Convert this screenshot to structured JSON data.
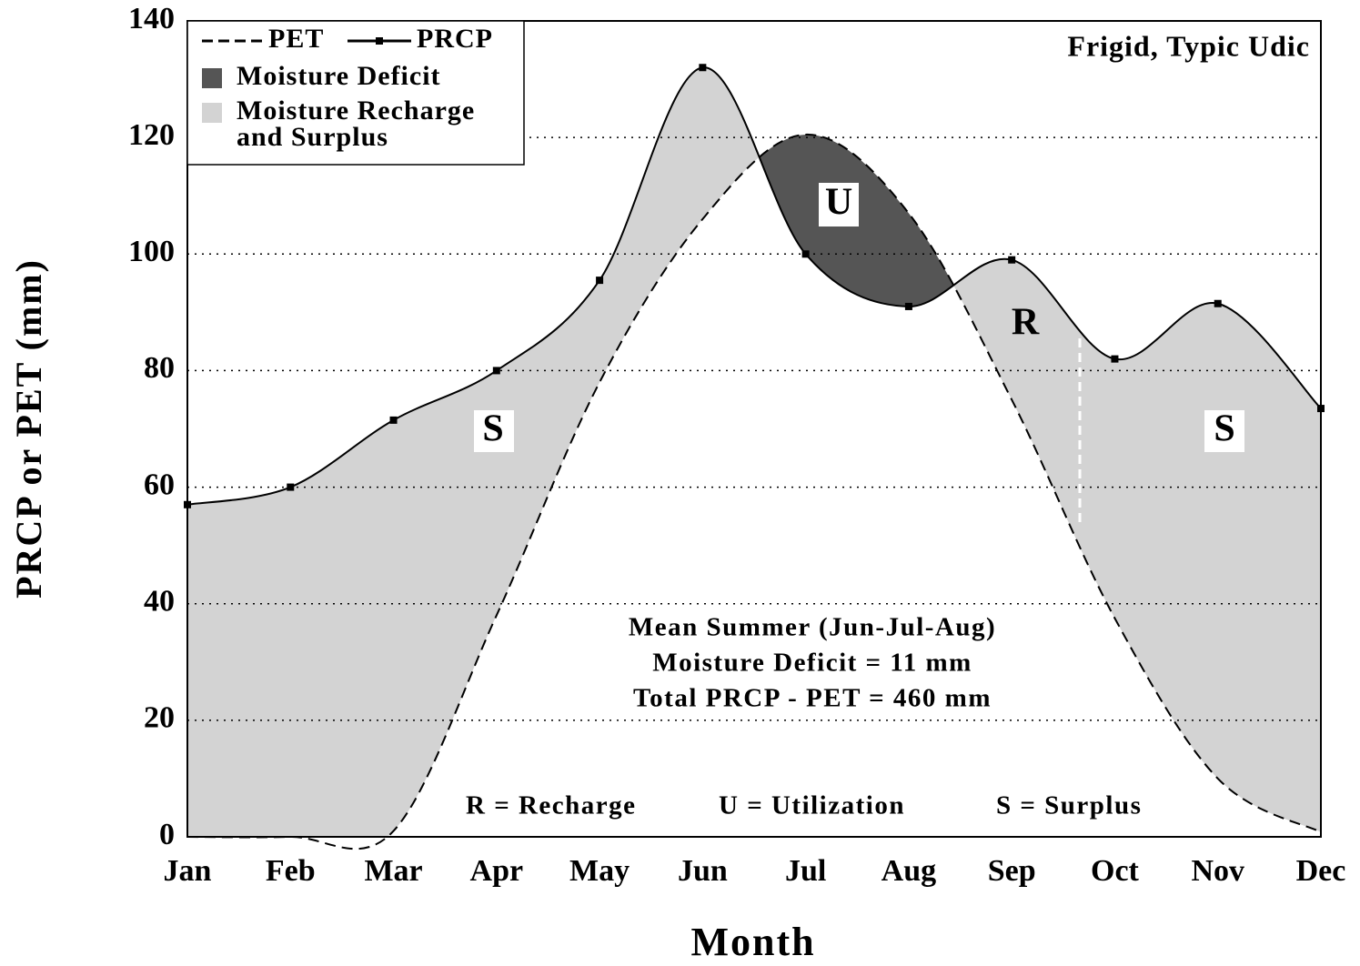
{
  "chart_data": {
    "type": "line",
    "title": "Frigid, Typic Udic",
    "x_label": "Month",
    "y_label": "PRCP or PET (mm)",
    "categories": [
      "Jan",
      "Feb",
      "Mar",
      "Apr",
      "May",
      "Jun",
      "Jul",
      "Aug",
      "Sep",
      "Oct",
      "Nov",
      "Dec"
    ],
    "series": [
      {
        "name": "PET",
        "color": "#000000",
        "dash": true,
        "values": [
          0,
          0,
          1,
          38,
          78,
          106,
          120.5,
          107,
          75,
          37.5,
          10,
          0.8
        ]
      },
      {
        "name": "PRCP",
        "color": "#000000",
        "dash": false,
        "values": [
          57,
          60,
          71.5,
          80,
          95.5,
          132,
          100,
          91,
          99,
          82,
          91.5,
          73.5
        ]
      }
    ],
    "fills": [
      {
        "name": [
          "Moisture Deficit"
        ],
        "color": "#555555"
      },
      {
        "name": [
          "Moisture Recharge",
          "and Surplus"
        ],
        "color": "#d3d3d3"
      }
    ],
    "annotations": [
      "U",
      "R",
      "S",
      "S",
      "Mean Summer (Jun-Jul-Aug)",
      "Moisture Deficit = 11 mm",
      "Total PRCP - PET = 460 mm",
      "R = Recharge",
      "U = Utilization",
      "S = Surplus"
    ],
    "ylim": [
      0,
      140
    ],
    "yticks": [
      0,
      20,
      40,
      60,
      80,
      100,
      120,
      140
    ],
    "grid": true
  }
}
